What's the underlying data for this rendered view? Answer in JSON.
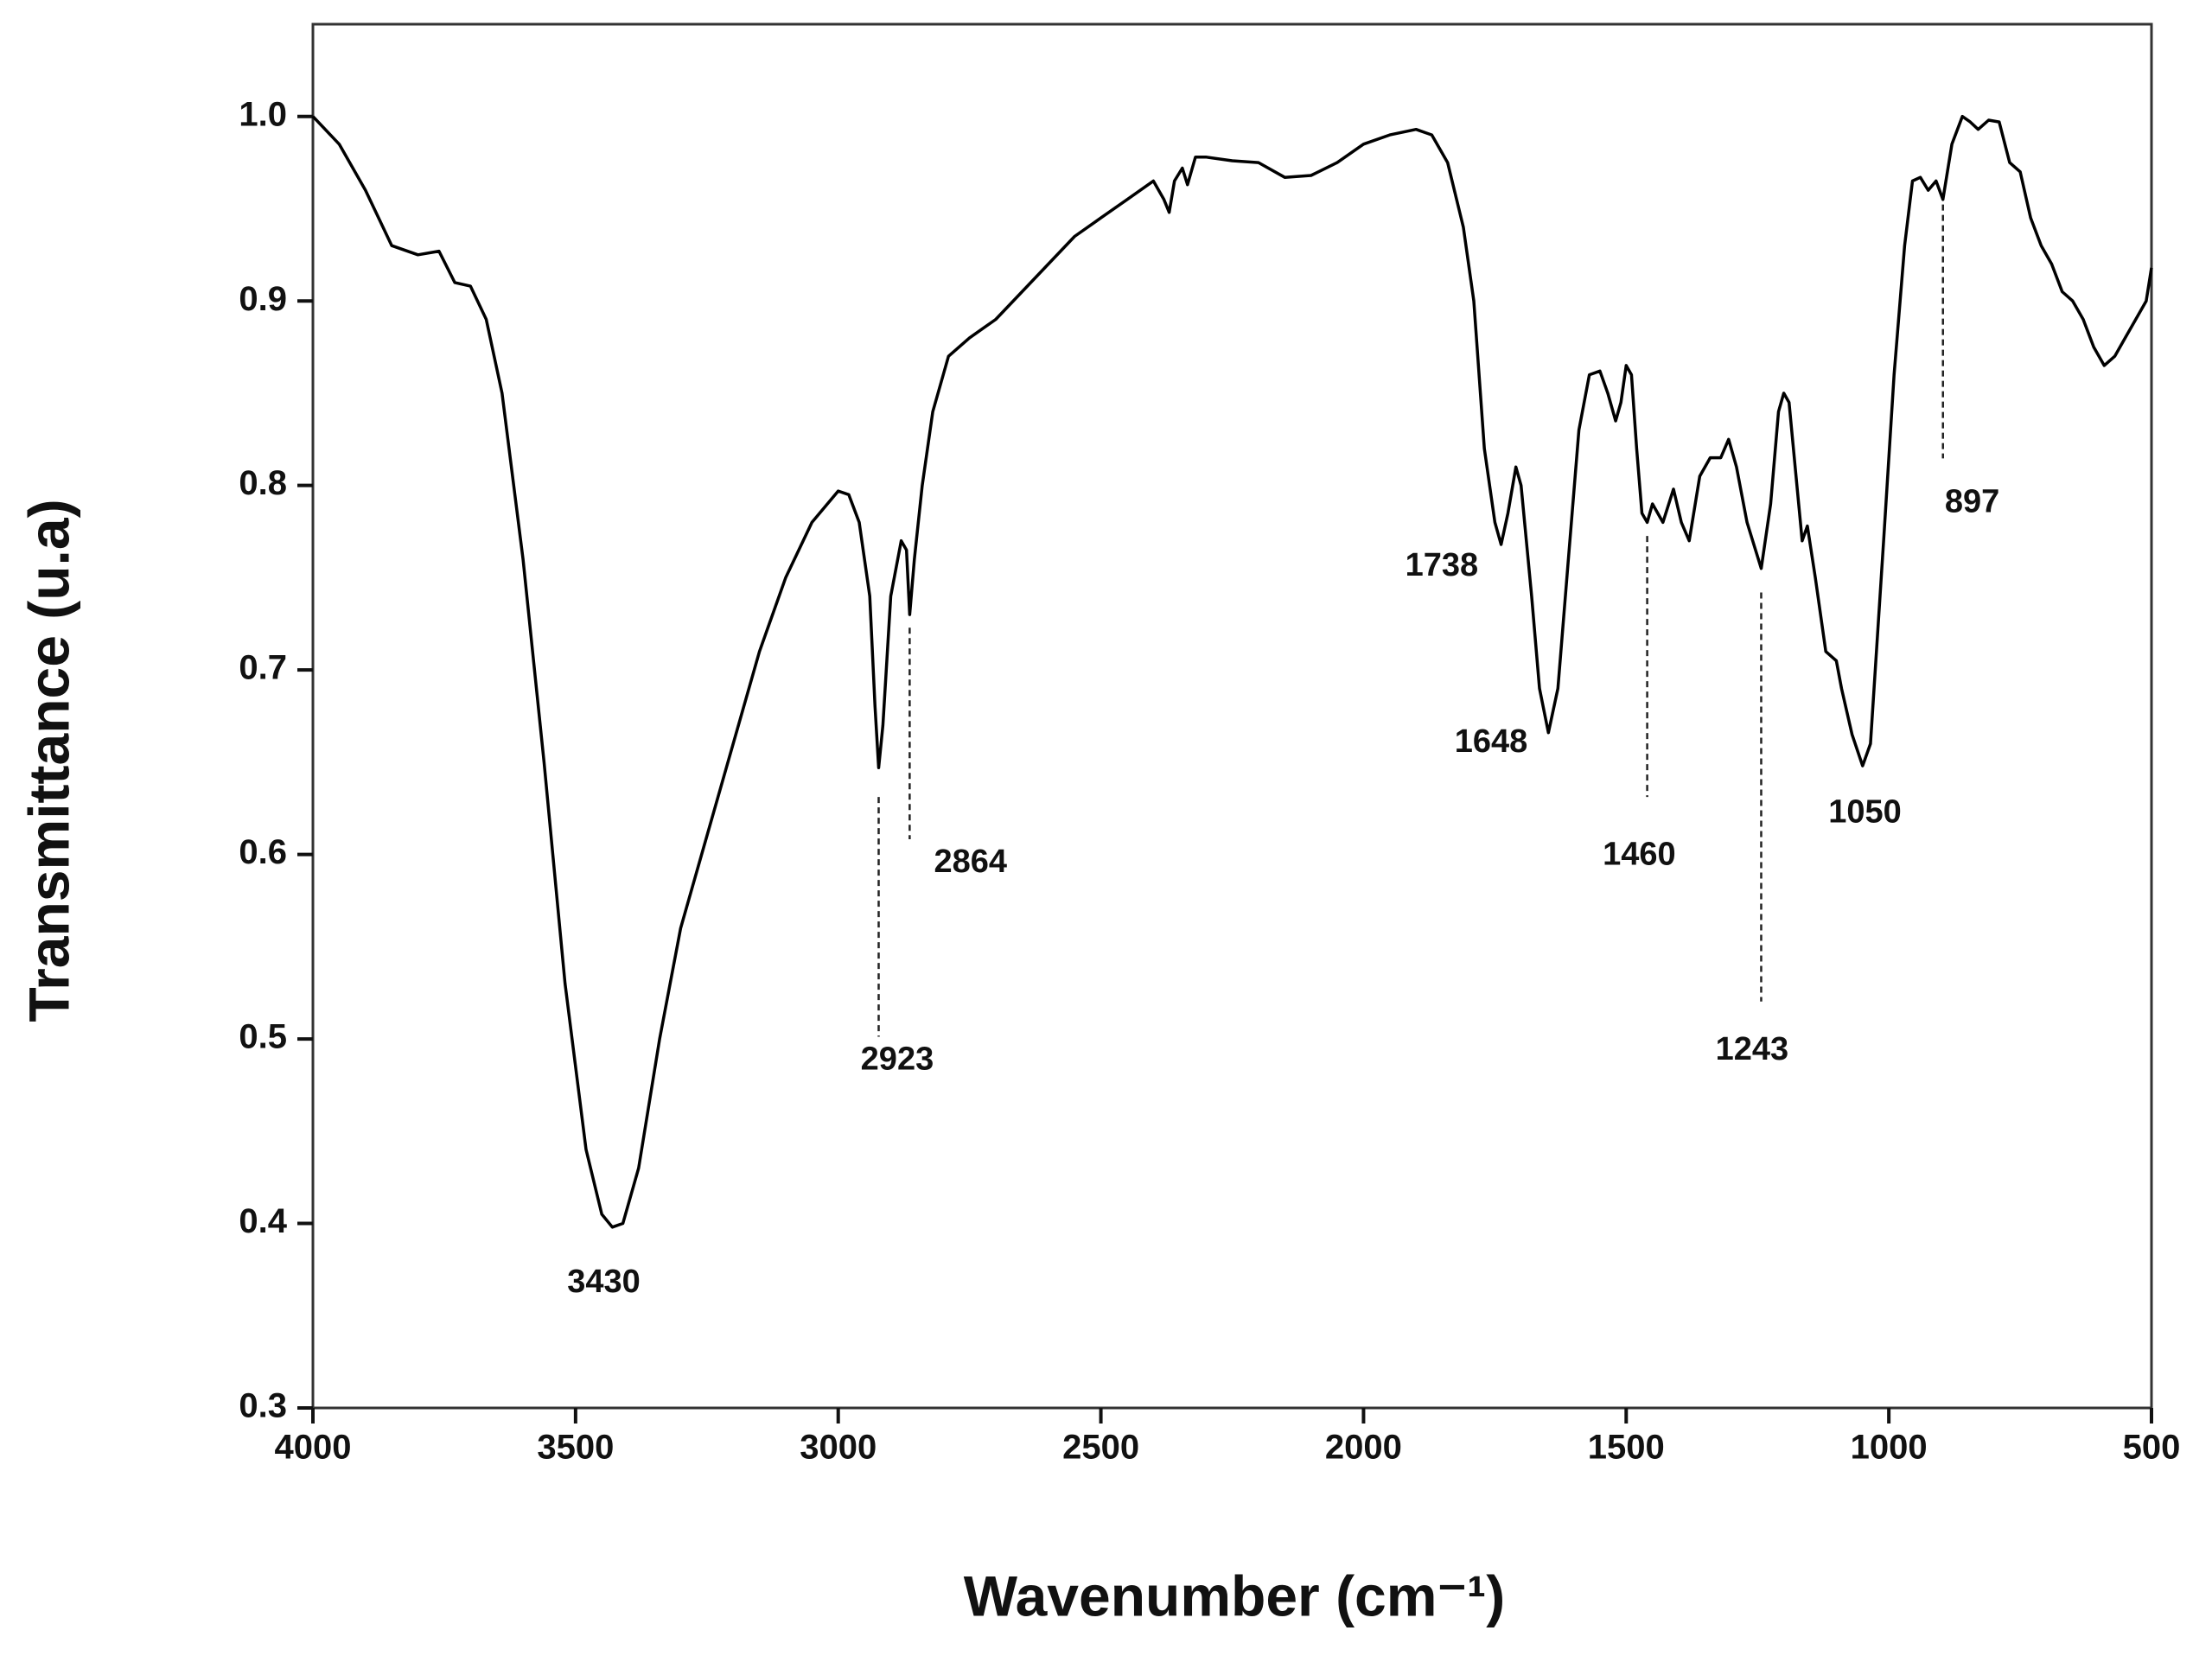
{
  "chart_data": {
    "type": "line",
    "xlabel": "Wavenumber (cm⁻¹)",
    "ylabel": "Transmittance (u.a)",
    "xlim": [
      4000,
      500
    ],
    "ylim": [
      0.3,
      1.05
    ],
    "xticks": [
      4000,
      3500,
      3000,
      2500,
      2000,
      1500,
      1000,
      500
    ],
    "yticks": [
      0.3,
      0.4,
      0.5,
      0.6,
      0.7,
      0.8,
      0.9,
      {
        "value": 1,
        "label": "1.0"
      }
    ],
    "x": [
      4000,
      3950,
      3900,
      3850,
      3800,
      3760,
      3730,
      3700,
      3670,
      3640,
      3600,
      3560,
      3520,
      3480,
      3450,
      3430,
      3410,
      3380,
      3340,
      3300,
      3260,
      3200,
      3150,
      3100,
      3050,
      3000,
      2980,
      2960,
      2940,
      2930,
      2923,
      2915,
      2900,
      2880,
      2870,
      2864,
      2855,
      2840,
      2820,
      2790,
      2750,
      2700,
      2650,
      2600,
      2550,
      2500,
      2450,
      2400,
      2380,
      2370,
      2360,
      2345,
      2335,
      2320,
      2300,
      2250,
      2200,
      2150,
      2100,
      2050,
      2000,
      1950,
      1900,
      1870,
      1840,
      1810,
      1790,
      1770,
      1750,
      1738,
      1725,
      1710,
      1700,
      1680,
      1665,
      1648,
      1630,
      1610,
      1590,
      1570,
      1550,
      1535,
      1520,
      1510,
      1500,
      1490,
      1480,
      1470,
      1460,
      1450,
      1430,
      1410,
      1395,
      1380,
      1360,
      1340,
      1320,
      1305,
      1290,
      1270,
      1243,
      1225,
      1210,
      1200,
      1190,
      1175,
      1165,
      1155,
      1140,
      1120,
      1100,
      1090,
      1070,
      1050,
      1035,
      1010,
      990,
      970,
      955,
      940,
      925,
      910,
      897,
      880,
      860,
      845,
      830,
      810,
      790,
      770,
      750,
      730,
      710,
      690,
      670,
      650,
      630,
      610,
      590,
      570,
      550,
      530,
      510,
      500
    ],
    "series": [
      {
        "color": "#000000",
        "values": [
          1.0,
          0.985,
          0.96,
          0.93,
          0.925,
          0.927,
          0.91,
          0.908,
          0.89,
          0.85,
          0.76,
          0.65,
          0.53,
          0.44,
          0.405,
          0.398,
          0.4,
          0.43,
          0.5,
          0.56,
          0.6,
          0.66,
          0.71,
          0.75,
          0.78,
          0.797,
          0.795,
          0.78,
          0.74,
          0.68,
          0.647,
          0.67,
          0.74,
          0.77,
          0.765,
          0.73,
          0.76,
          0.8,
          0.84,
          0.87,
          0.88,
          0.89,
          0.905,
          0.92,
          0.935,
          0.945,
          0.955,
          0.965,
          0.955,
          0.948,
          0.965,
          0.972,
          0.963,
          0.978,
          0.978,
          0.976,
          0.975,
          0.967,
          0.968,
          0.975,
          0.985,
          0.99,
          0.993,
          0.99,
          0.975,
          0.94,
          0.9,
          0.82,
          0.78,
          0.768,
          0.785,
          0.81,
          0.8,
          0.74,
          0.69,
          0.666,
          0.69,
          0.76,
          0.83,
          0.86,
          0.862,
          0.85,
          0.835,
          0.845,
          0.865,
          0.86,
          0.82,
          0.785,
          0.78,
          0.79,
          0.78,
          0.798,
          0.78,
          0.77,
          0.805,
          0.815,
          0.815,
          0.825,
          0.81,
          0.78,
          0.755,
          0.79,
          0.84,
          0.85,
          0.845,
          0.8,
          0.77,
          0.778,
          0.75,
          0.71,
          0.705,
          0.69,
          0.665,
          0.648,
          0.66,
          0.77,
          0.86,
          0.93,
          0.965,
          0.967,
          0.96,
          0.965,
          0.955,
          0.985,
          1.0,
          0.997,
          0.993,
          0.998,
          0.997,
          0.975,
          0.97,
          0.945,
          0.93,
          0.92,
          0.905,
          0.9,
          0.89,
          0.875,
          0.865,
          0.87,
          0.88,
          0.89,
          0.9,
          0.918
        ]
      }
    ],
    "annotations": [
      {
        "value": 3430,
        "label": "3430"
      },
      {
        "value": 2923,
        "label": "2923"
      },
      {
        "value": 2864,
        "label": "2864"
      },
      {
        "value": 1738,
        "label": "1738"
      },
      {
        "value": 1648,
        "label": "1648"
      },
      {
        "value": 1460,
        "label": "1460"
      },
      {
        "value": 1243,
        "label": "1243"
      },
      {
        "value": 1050,
        "label": "1050"
      },
      {
        "value": 897,
        "label": "897"
      }
    ]
  }
}
